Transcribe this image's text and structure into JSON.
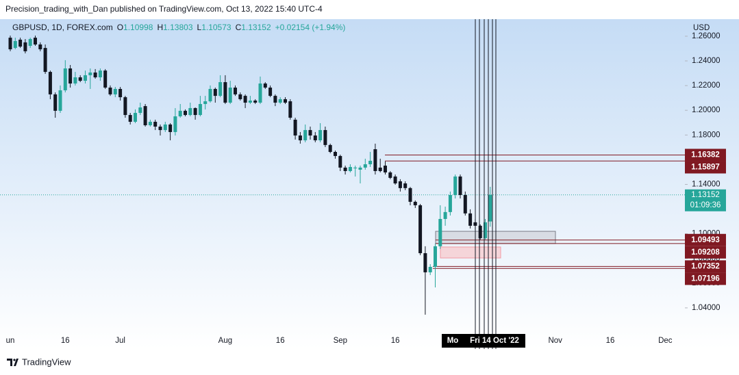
{
  "header": "Precision_trading_with_Dan published on TradingView.com, Oct 13, 2022 15:40 UTC-4",
  "footer": "TradingView",
  "chart_data": {
    "type": "candlestick",
    "symbol": "GBPUSD, 1D, FOREX.com",
    "legend": [
      {
        "label": "O",
        "value": "1.10998"
      },
      {
        "label": "H",
        "value": "1.13803"
      },
      {
        "label": "L",
        "value": "1.10573"
      },
      {
        "label": "C",
        "value": "1.13152"
      }
    ],
    "change": "+0.02154 (+1.94%)",
    "currency": "USD",
    "up_color": "#26a69a",
    "down_color": "#131722",
    "grid": false,
    "ylim": [
      1.02,
      1.2727
    ],
    "yticks": [
      {
        "value": 1.04,
        "label": "1.04000"
      },
      {
        "value": 1.06,
        "label": "1.06000"
      },
      {
        "value": 1.08,
        "label": "1.08000"
      },
      {
        "value": 1.1,
        "label": "1.10000"
      },
      {
        "value": 1.12,
        "label": "1.12000"
      },
      {
        "value": 1.14,
        "label": "1.14000"
      },
      {
        "value": 1.16,
        "label": "1.16000"
      },
      {
        "value": 1.18,
        "label": "1.18000"
      },
      {
        "value": 1.2,
        "label": "1.20000"
      },
      {
        "value": 1.22,
        "label": "1.22000"
      },
      {
        "value": 1.24,
        "label": "1.24000"
      },
      {
        "value": 1.26,
        "label": "1.26000"
      }
    ],
    "categories": [
      "un",
      null,
      null,
      null,
      null,
      null,
      null,
      null,
      null,
      null,
      null,
      "16",
      null,
      null,
      null,
      null,
      null,
      null,
      null,
      null,
      null,
      null,
      "Jul",
      null,
      null,
      null,
      null,
      null,
      null,
      null,
      null,
      null,
      null,
      null,
      null,
      null,
      null,
      null,
      null,
      null,
      null,
      null,
      null,
      "Aug",
      null,
      null,
      null,
      null,
      null,
      null,
      null,
      null,
      null,
      null,
      "16",
      null,
      null,
      null,
      null,
      null,
      null,
      null,
      null,
      null,
      null,
      null,
      "Sep",
      null,
      null,
      null,
      null,
      null,
      null,
      null,
      null,
      null,
      null,
      "16",
      null,
      null,
      null,
      null,
      null,
      null,
      null,
      null,
      null,
      null,
      null,
      null,
      null,
      null,
      null,
      null,
      null,
      null,
      null,
      null,
      null,
      null,
      null,
      null,
      null,
      null,
      null,
      null,
      null,
      null,
      null,
      "Nov",
      null,
      null,
      null,
      null,
      null,
      null,
      null,
      null,
      null,
      null,
      "16",
      null,
      null,
      null,
      null,
      null,
      null,
      null,
      null,
      null,
      null,
      "Dec",
      null,
      null,
      null,
      null
    ],
    "open": [
      1.2588,
      1.2505,
      1.2572,
      1.255,
      1.2522,
      1.2588,
      1.2533,
      1.2505,
      1.2311,
      1.2129,
      1.1996,
      1.2162,
      1.2339,
      1.2217,
      1.2267,
      1.2239,
      1.2284,
      1.2306,
      1.2267,
      1.2322,
      1.2184,
      1.2129,
      1.2173,
      1.2106,
      1.1962,
      1.1907,
      1.1979,
      1.2034,
      1.1879,
      1.1907,
      1.1868,
      1.184,
      1.1885,
      1.1824,
      1.1951,
      1.1996,
      1.1962,
      1.2018,
      1.1962,
      1.2051,
      1.2073,
      1.2173,
      1.2117,
      1.2228,
      1.2062,
      1.2184,
      1.2129,
      1.2117,
      1.2062,
      1.2079,
      1.2062,
      1.2217,
      1.2184,
      1.2117,
      1.2062,
      1.209,
      1.2073,
      1.1924,
      1.1796,
      1.1757,
      1.184,
      1.1796,
      1.1757,
      1.184,
      1.1719,
      1.1663,
      1.163,
      1.1536,
      1.1508,
      1.153,
      1.1519,
      1.1536,
      1.1563,
      1.1685,
      1.1536,
      1.1552,
      1.1497,
      1.1464,
      1.1425,
      1.1408,
      1.137,
      1.1259,
      1.1231,
      1.0843,
      1.0688,
      1.0732,
      1.0899,
      1.112,
      1.1176,
      1.1314,
      1.1464,
      1.1314,
      1.1165,
      1.1093,
      1.1065,
      1.0965,
      1.10998,
      null,
      null,
      null,
      null,
      null,
      null,
      null,
      null,
      null,
      null,
      null,
      null,
      null,
      null,
      null,
      null,
      null,
      null,
      null,
      null,
      null,
      null,
      null,
      null,
      null,
      null,
      null,
      null,
      null,
      null,
      null,
      null,
      null,
      null,
      null,
      null,
      null,
      null,
      null
    ],
    "high": [
      1.2605,
      1.2588,
      1.2588,
      1.2577,
      1.2588,
      1.2605,
      1.255,
      1.2533,
      1.2322,
      1.2145,
      1.2201,
      1.2406,
      1.2367,
      1.2311,
      1.2284,
      1.2322,
      1.2339,
      1.2334,
      1.2339,
      1.2334,
      1.2201,
      1.2189,
      1.2189,
      1.2117,
      1.1979,
      1.2007,
      1.2062,
      1.2051,
      1.1924,
      1.1924,
      1.1885,
      1.1907,
      1.1896,
      1.2018,
      1.2051,
      1.2007,
      1.2062,
      1.2023,
      1.2117,
      1.2117,
      1.2201,
      1.2184,
      1.2284,
      1.2284,
      1.2239,
      1.2201,
      1.2145,
      1.2129,
      1.2117,
      1.209,
      1.2273,
      1.2228,
      1.2201,
      1.2129,
      1.2106,
      1.2106,
      1.209,
      1.194,
      1.1824,
      1.1885,
      1.1868,
      1.1824,
      1.1896,
      1.1868,
      1.173,
      1.1674,
      1.1641,
      1.1552,
      1.1563,
      1.1552,
      1.1552,
      1.1608,
      1.1663,
      1.173,
      1.1608,
      1.1586,
      1.1508,
      1.148,
      1.1442,
      1.1425,
      1.138,
      1.127,
      1.1242,
      1.0899,
      1.0754,
      1.0921,
      1.1231,
      1.122,
      1.1342,
      1.148,
      1.148,
      1.1342,
      1.1198,
      1.112,
      1.1076,
      1.112,
      1.13803,
      null,
      null,
      null,
      null,
      null,
      null,
      null,
      null,
      null,
      null,
      null,
      null,
      null,
      null,
      null,
      null,
      null,
      null,
      null,
      null,
      null,
      null,
      null,
      null,
      null,
      null,
      null,
      null,
      null,
      null,
      null,
      null,
      null,
      null,
      null,
      null,
      null,
      null,
      null
    ],
    "low": [
      1.2478,
      1.2494,
      1.2505,
      1.2461,
      1.2505,
      1.2522,
      1.2478,
      1.2295,
      1.209,
      1.194,
      1.1979,
      1.2145,
      1.2184,
      1.2201,
      1.2228,
      1.2217,
      1.2173,
      1.2256,
      1.2239,
      1.2173,
      1.2117,
      1.2106,
      1.2079,
      1.194,
      1.1885,
      1.1896,
      1.1962,
      1.1868,
      1.1868,
      1.184,
      1.1796,
      1.1824,
      1.1757,
      1.1796,
      1.194,
      1.1951,
      1.1951,
      1.1924,
      1.1951,
      1.2007,
      1.2062,
      1.2062,
      1.2106,
      1.2051,
      1.2051,
      1.2117,
      1.2079,
      1.2018,
      1.2051,
      1.2051,
      1.2051,
      1.2173,
      1.2106,
      1.2034,
      1.2051,
      1.2051,
      1.1924,
      1.1763,
      1.173,
      1.1741,
      1.1763,
      1.1741,
      1.1741,
      1.1702,
      1.1652,
      1.1608,
      1.1508,
      1.148,
      1.1497,
      1.1464,
      1.1408,
      1.1519,
      1.1541,
      1.148,
      1.1497,
      1.148,
      1.1442,
      1.1397,
      1.1342,
      1.1353,
      1.1231,
      1.1209,
      1.0827,
      1.0345,
      1.0666,
      1.0566,
      1.0877,
      1.1065,
      1.1148,
      1.1286,
      1.1286,
      1.1148,
      1.1043,
      1.1032,
      1.0954,
      1.0954,
      1.10573,
      null,
      null,
      null,
      null,
      null,
      null,
      null,
      null,
      null,
      null,
      null,
      null,
      null,
      null,
      null,
      null,
      null,
      null,
      null,
      null,
      null,
      null,
      null,
      null,
      null,
      null,
      null,
      null,
      null,
      null,
      null,
      null,
      null,
      null,
      null,
      null,
      null,
      null,
      null
    ],
    "close": [
      1.2494,
      1.2561,
      1.2516,
      1.2478,
      1.2577,
      1.2533,
      1.2494,
      1.2311,
      1.2129,
      1.1996,
      1.2162,
      1.2339,
      1.2217,
      1.2267,
      1.2239,
      1.2284,
      1.2306,
      1.2267,
      1.2322,
      1.2184,
      1.2129,
      1.2173,
      1.2106,
      1.1962,
      1.1907,
      1.1979,
      1.2023,
      1.1879,
      1.1907,
      1.1868,
      1.184,
      1.1885,
      1.1824,
      1.1951,
      1.1996,
      1.1962,
      1.2018,
      1.1962,
      1.2051,
      1.2073,
      1.2173,
      1.2117,
      1.2228,
      1.2062,
      1.2184,
      1.2129,
      1.209,
      1.2062,
      1.2079,
      1.2062,
      1.2217,
      1.2184,
      1.2117,
      1.2062,
      1.209,
      1.2062,
      1.194,
      1.1796,
      1.1757,
      1.184,
      1.1796,
      1.1757,
      1.184,
      1.1719,
      1.1663,
      1.163,
      1.1536,
      1.1508,
      1.1541,
      1.1536,
      1.1536,
      1.1563,
      1.1591,
      1.1508,
      1.1508,
      1.1497,
      1.1453,
      1.1408,
      1.137,
      1.137,
      1.1259,
      1.1231,
      1.0843,
      1.0688,
      1.0732,
      1.0899,
      1.112,
      1.1176,
      1.1314,
      1.1464,
      1.1314,
      1.1165,
      1.1065,
      1.1065,
      1.0965,
      1.1093,
      1.13152,
      null,
      null,
      null,
      null,
      null,
      null,
      null,
      null,
      null,
      null,
      null,
      null,
      null,
      null,
      null,
      null,
      null,
      null,
      null,
      null,
      null,
      null,
      null,
      null,
      null,
      null,
      null,
      null,
      null,
      null,
      null,
      null,
      null,
      null,
      null,
      null,
      null,
      null,
      null
    ],
    "price_lines": {
      "values": [
        1.16382,
        1.15897,
        1.09493,
        1.09208,
        1.07352,
        1.07196
      ],
      "color": "#801922"
    },
    "last_price": {
      "value": 1.13152,
      "countdown": "01:09:36",
      "color": "#26a69a"
    },
    "zones": [
      {
        "top": 1.102,
        "bottom": 1.0921,
        "color": "#d1d4dc"
      },
      {
        "top": 1.0893,
        "bottom": 1.0804,
        "color": "#f7c9cd"
      }
    ],
    "crosshair_labels": [
      "Mo",
      "Fri 14 Oct '22"
    ]
  }
}
